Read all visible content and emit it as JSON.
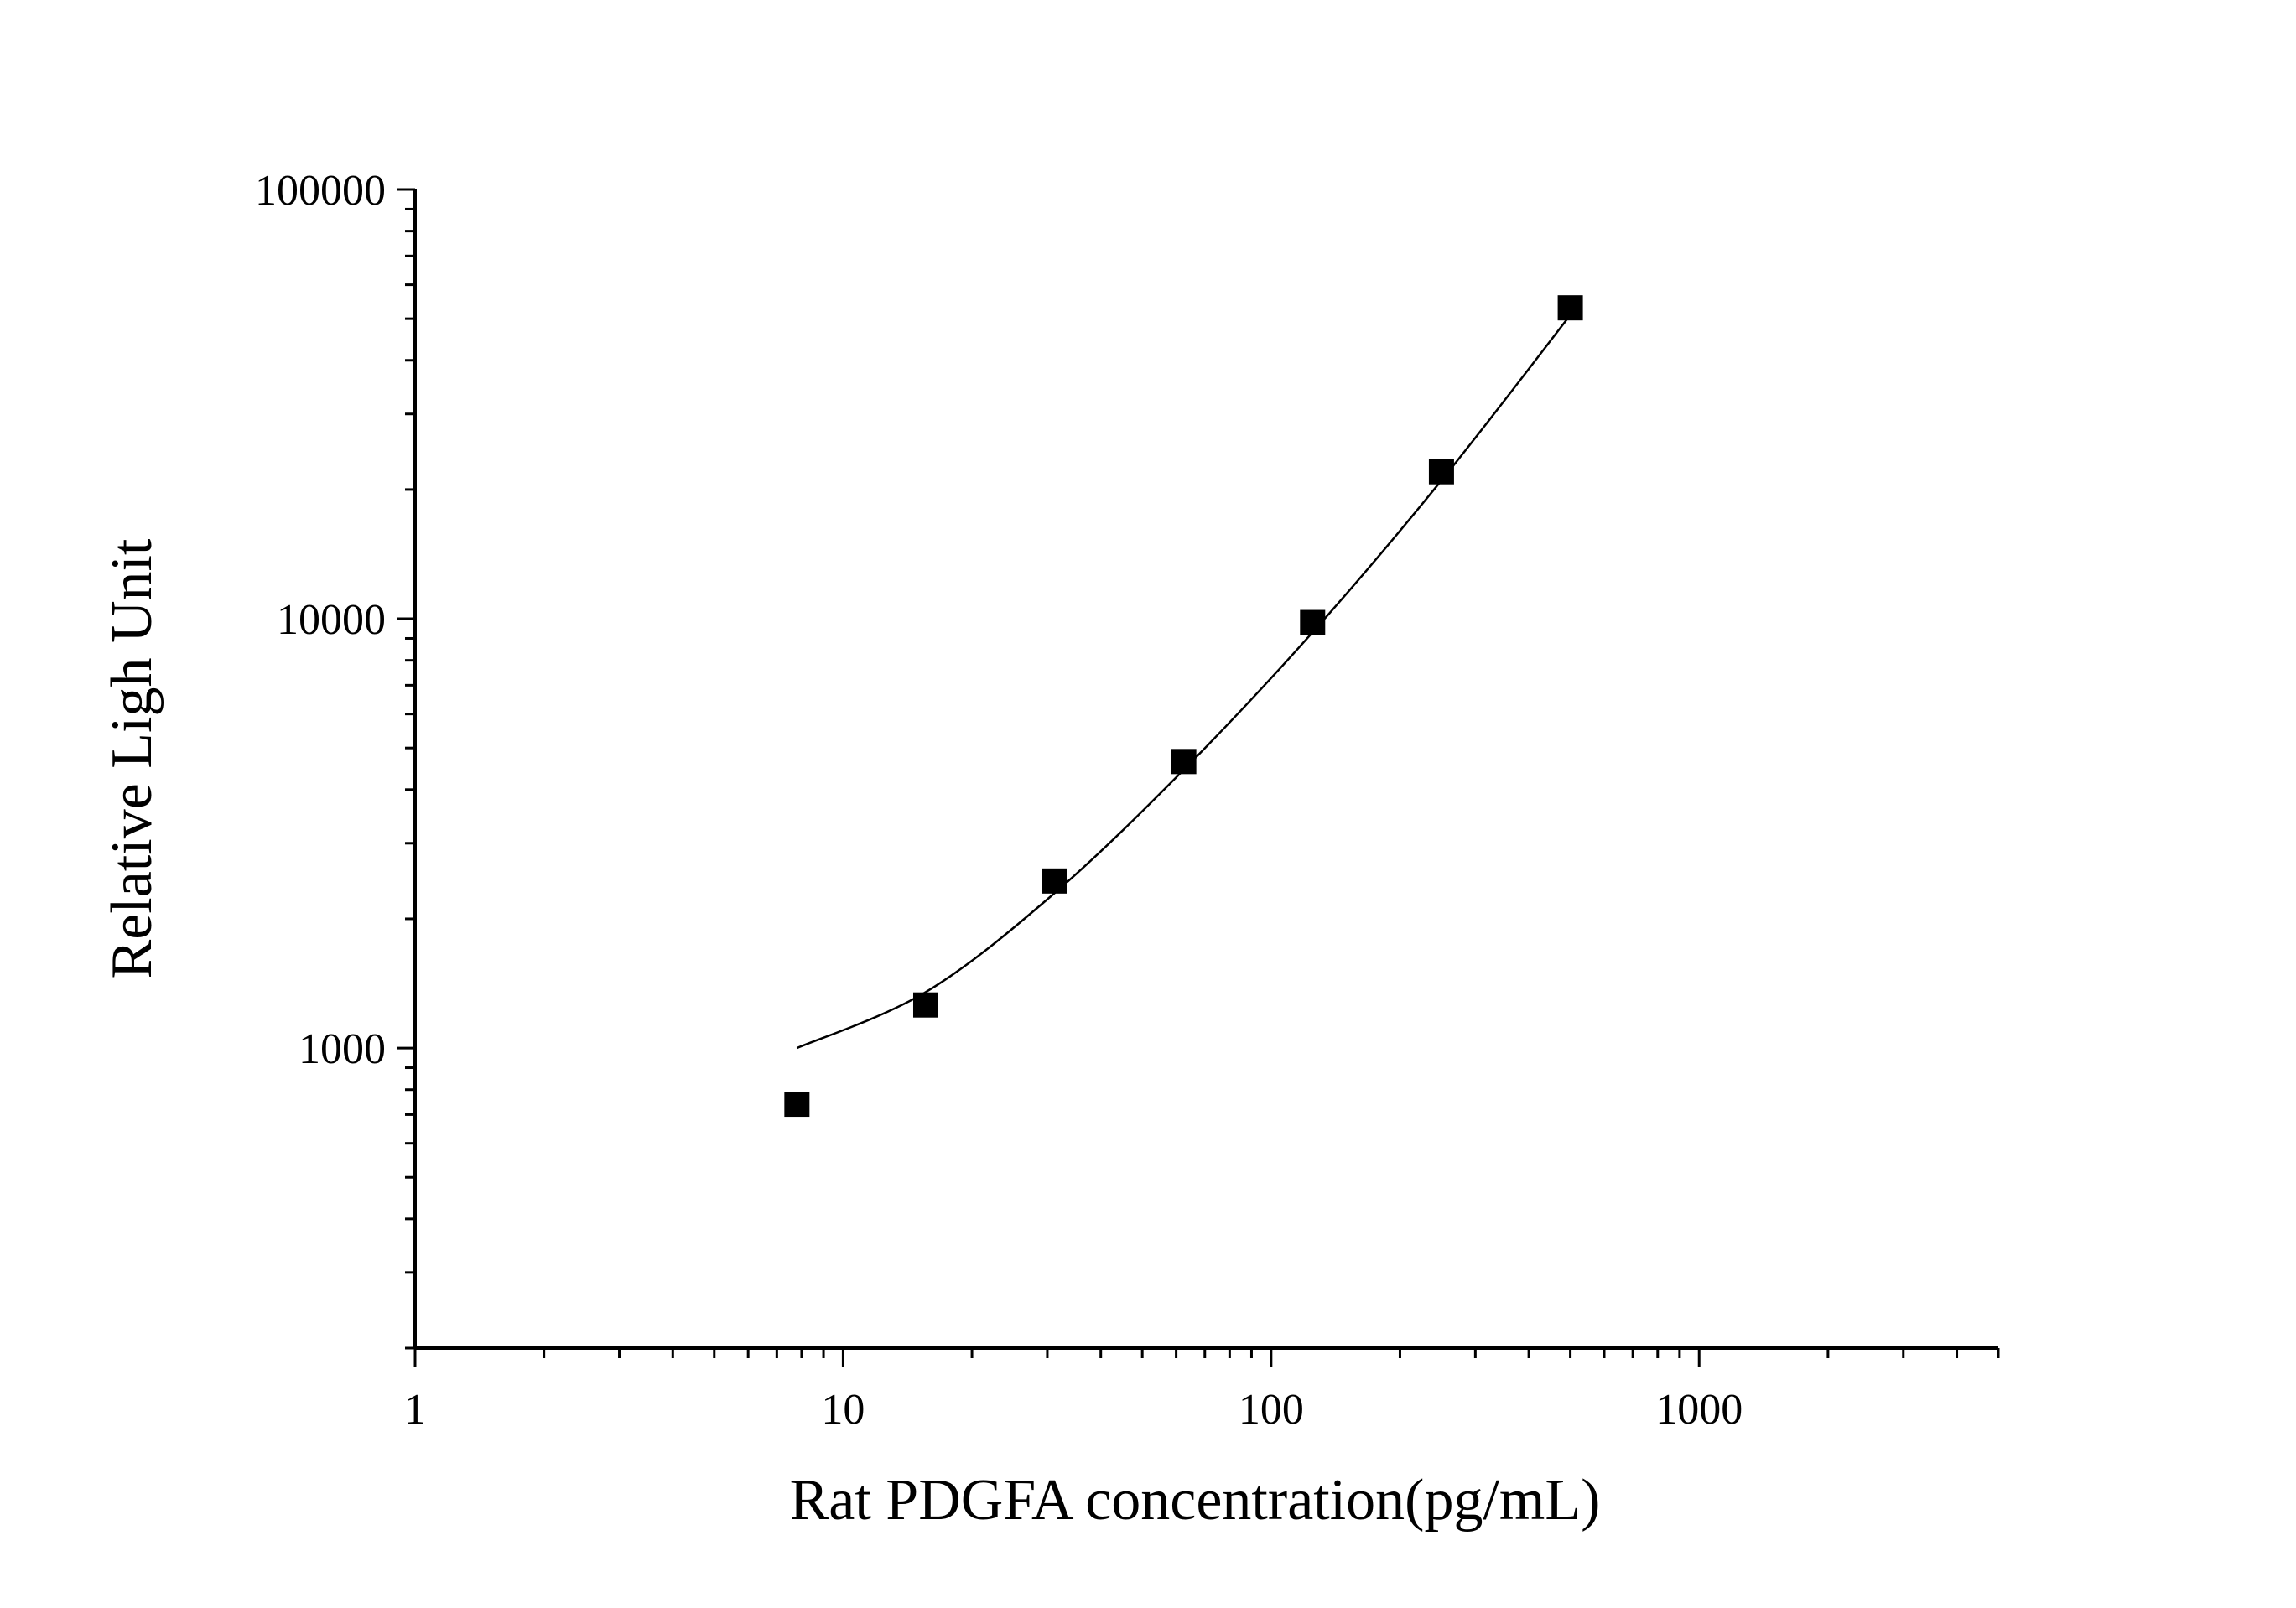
{
  "chart_data": {
    "type": "scatter",
    "title": "",
    "xlabel": "Rat PDGFA concentration(pg/mL)",
    "ylabel": "Relative Ligh Unit",
    "x_scale": "log",
    "y_scale": "log",
    "xlim": [
      1,
      5000
    ],
    "ylim": [
      200,
      100000
    ],
    "x_tick_labels": [
      "1",
      "10",
      "100",
      "1000"
    ],
    "y_tick_labels": [
      "1000",
      "10000",
      "100000"
    ],
    "grid": false,
    "legend": "none",
    "colors": {
      "axis": "#000000",
      "marker": "#000000",
      "curve": "#000000"
    },
    "series": [
      {
        "marker": "square",
        "x": [
          7.8,
          15.6,
          31.25,
          62.5,
          125,
          250,
          500
        ],
        "y": [
          740,
          1260,
          2450,
          4650,
          9800,
          22000,
          53000
        ]
      }
    ],
    "fit_curve": {
      "x": [
        7.8,
        15.6,
        31.25,
        62.5,
        125,
        250,
        500
      ],
      "y": [
        1000,
        1350,
        2300,
        4450,
        9300,
        21000,
        51000
      ]
    }
  }
}
